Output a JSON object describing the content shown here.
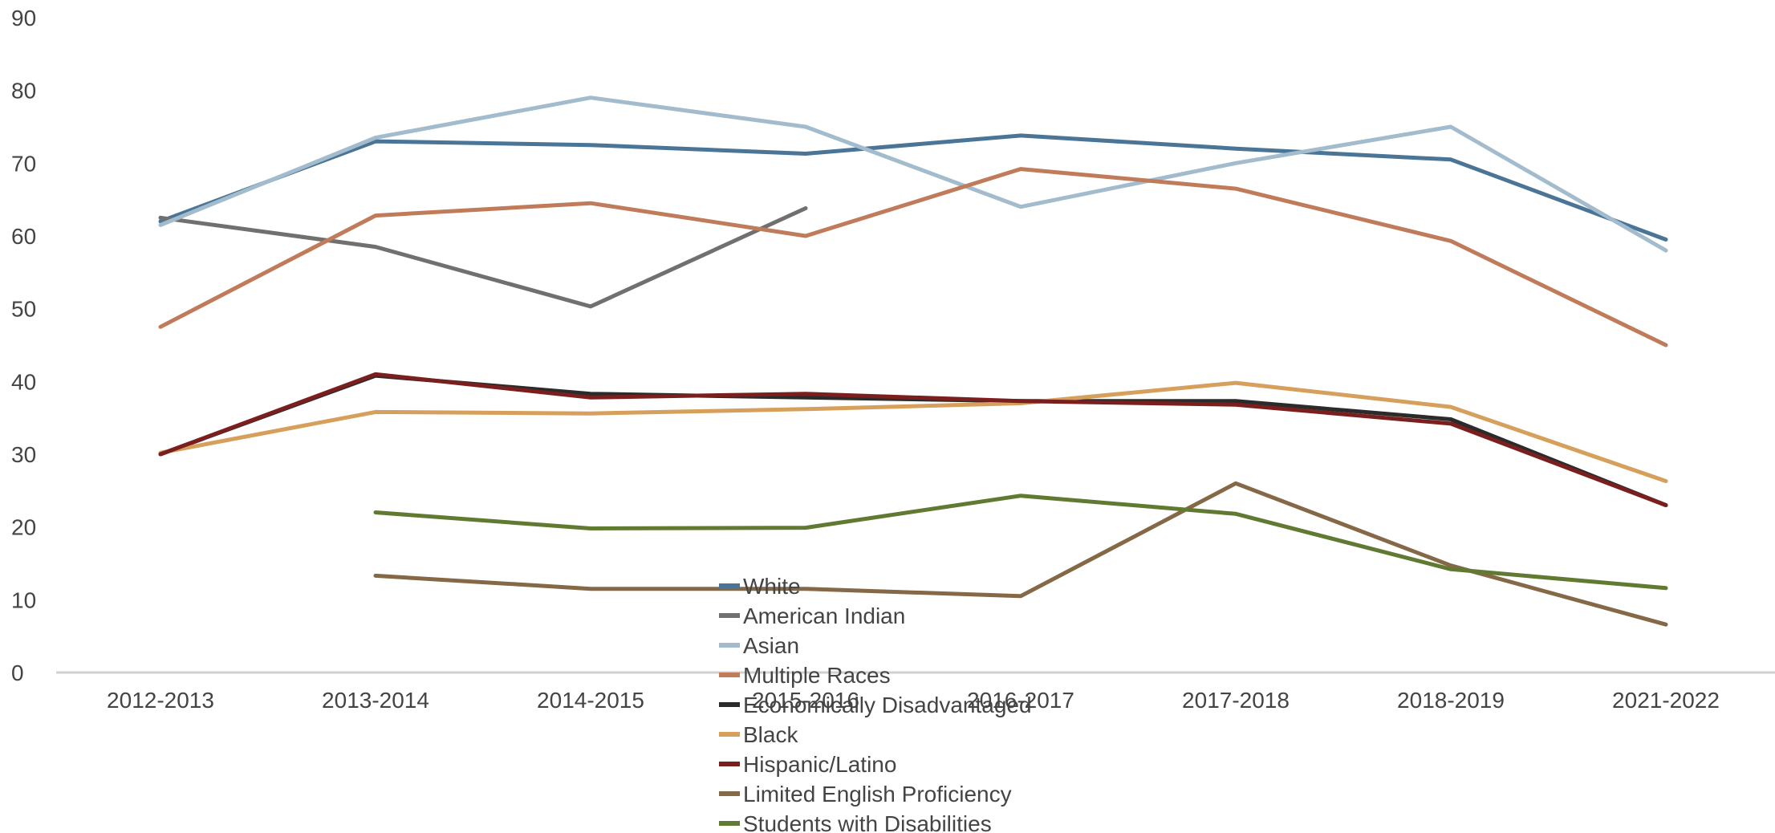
{
  "chart_data": {
    "type": "line",
    "title": "",
    "xlabel": "",
    "ylabel": "",
    "ylim": [
      0,
      90
    ],
    "yticks": [
      0,
      10,
      20,
      30,
      40,
      50,
      60,
      70,
      80,
      90
    ],
    "grid": false,
    "legend_position": "bottom-center",
    "categories": [
      "2012-2013",
      "2013-2014",
      "2014-2015",
      "2015-2016",
      "2016-2017",
      "2017-2018",
      "2018-2019",
      "2021-2022"
    ],
    "series": [
      {
        "name": "White",
        "color": "#4a7596",
        "values": [
          62,
          73,
          72.5,
          71.3,
          73.8,
          72,
          70.5,
          59.5
        ]
      },
      {
        "name": "American Indian",
        "color": "#707070",
        "values": [
          62.5,
          58.5,
          50.3,
          63.8,
          null,
          null,
          null,
          null
        ]
      },
      {
        "name": "Asian",
        "color": "#a3bccd",
        "values": [
          61.5,
          73.5,
          79,
          75,
          64,
          70,
          75,
          58
        ]
      },
      {
        "name": "Multiple Races",
        "color": "#c07b5a",
        "values": [
          47.5,
          62.8,
          64.5,
          60,
          69.2,
          66.5,
          59.3,
          45
        ]
      },
      {
        "name": "Economically Disadvantaged",
        "color": "#2b2b2b",
        "values": [
          30,
          40.8,
          38.3,
          37.8,
          37.3,
          37.3,
          34.8,
          23
        ]
      },
      {
        "name": "Black",
        "color": "#d6a05c",
        "values": [
          30.2,
          35.8,
          35.6,
          36.2,
          37,
          39.8,
          36.5,
          26.3
        ]
      },
      {
        "name": "Hispanic/Latino",
        "color": "#7a1e1e",
        "values": [
          30,
          41,
          37.8,
          38.3,
          37.3,
          36.8,
          34.2,
          23
        ]
      },
      {
        "name": "Limited English Proficiency",
        "color": "#856846",
        "values": [
          null,
          13.3,
          11.5,
          11.5,
          10.5,
          26,
          14.7,
          6.6
        ]
      },
      {
        "name": "Students with Disabilities",
        "color": "#617a32",
        "values": [
          null,
          22,
          19.8,
          19.9,
          24.3,
          21.8,
          14.2,
          11.6
        ]
      }
    ]
  }
}
